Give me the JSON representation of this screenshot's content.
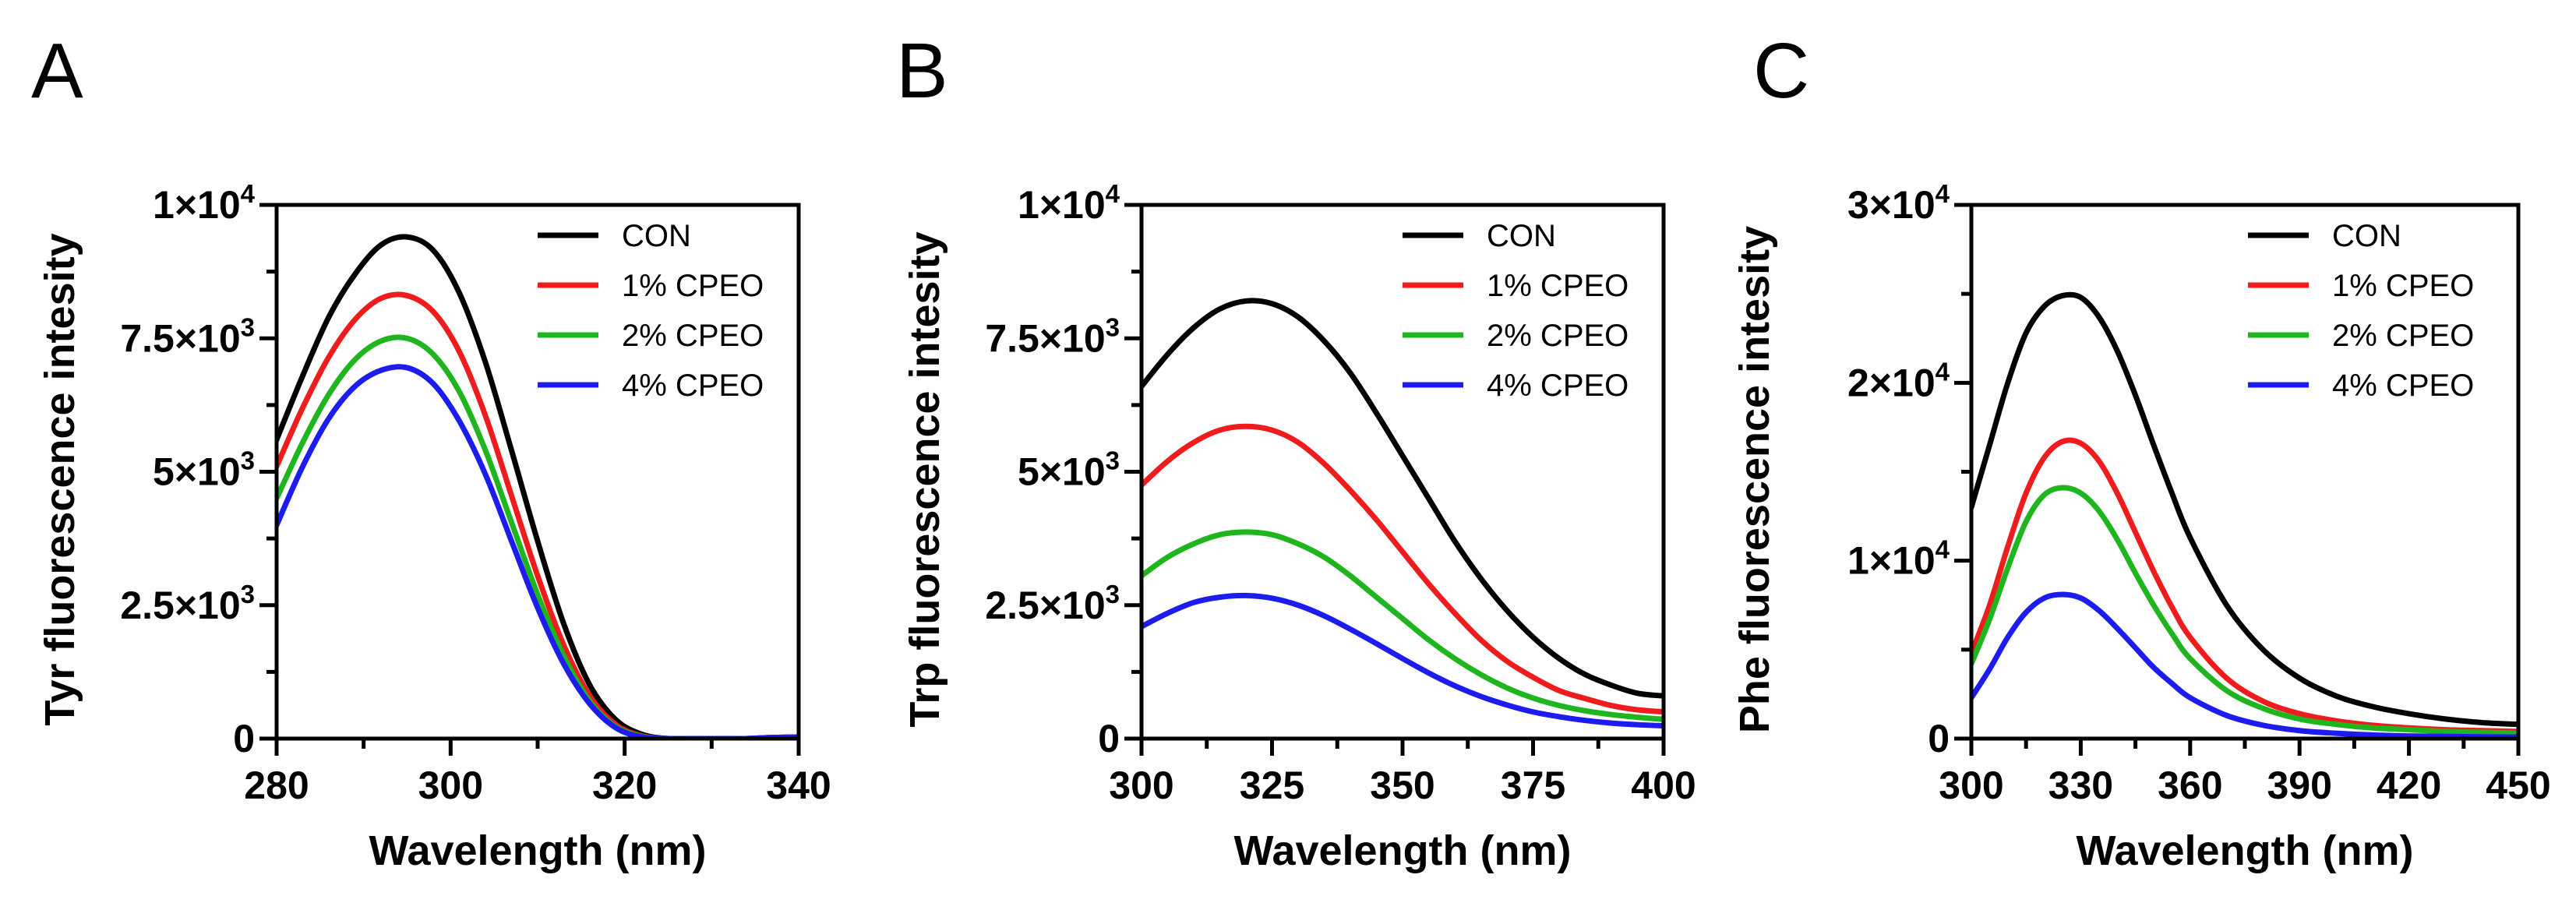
{
  "figure": {
    "panels": [
      "A",
      "B",
      "C"
    ]
  },
  "colors": {
    "CON": "#000000",
    "1% CPEO": "#ee1c1c",
    "2% CPEO": "#1fb51f",
    "4% CPEO": "#1c1cee"
  },
  "chart_data": [
    {
      "type": "line",
      "panel": "A",
      "xlabel": "Wavelength (nm)",
      "ylabel": "Tyr fluorescence intesity",
      "xlim": [
        280,
        340
      ],
      "ylim": [
        0,
        10000
      ],
      "xticks": [
        280,
        300,
        320,
        340
      ],
      "xtick_labels": [
        "280",
        "300",
        "320",
        "340"
      ],
      "yticks": [
        0,
        2500,
        5000,
        7500,
        10000
      ],
      "ytick_labels": [
        {
          "base": "0",
          "sup": ""
        },
        {
          "base": "2.5×10",
          "sup": "3"
        },
        {
          "base": "5×10",
          "sup": "3"
        },
        {
          "base": "7.5×10",
          "sup": "3"
        },
        {
          "base": "1×10",
          "sup": "4"
        }
      ],
      "legend": [
        "CON",
        "1% CPEO",
        "2% CPEO",
        "4% CPEO"
      ],
      "legend_position": "top-right",
      "series": [
        {
          "name": "CON",
          "x": [
            280,
            283,
            286,
            289,
            292,
            295,
            298,
            301,
            304,
            307,
            310,
            313,
            316,
            319,
            322,
            325,
            328,
            331,
            334,
            337,
            340
          ],
          "values": [
            5600,
            6800,
            7900,
            8700,
            9250,
            9400,
            9150,
            8350,
            7050,
            5400,
            3700,
            2150,
            1000,
            350,
            80,
            0,
            0,
            0,
            0,
            20,
            30
          ]
        },
        {
          "name": "1% CPEO",
          "x": [
            280,
            283,
            286,
            289,
            292,
            295,
            298,
            301,
            304,
            307,
            310,
            313,
            316,
            319,
            322,
            325,
            328,
            331,
            334,
            337,
            340
          ],
          "values": [
            5100,
            6200,
            7150,
            7850,
            8250,
            8300,
            8000,
            7250,
            6050,
            4550,
            3050,
            1750,
            800,
            260,
            50,
            0,
            0,
            0,
            0,
            20,
            30
          ]
        },
        {
          "name": "2% CPEO",
          "x": [
            280,
            283,
            286,
            289,
            292,
            295,
            298,
            301,
            304,
            307,
            310,
            313,
            316,
            319,
            322,
            325,
            328,
            331,
            334,
            337,
            340
          ],
          "values": [
            4500,
            5550,
            6450,
            7100,
            7450,
            7500,
            7200,
            6500,
            5400,
            4050,
            2700,
            1550,
            700,
            220,
            40,
            0,
            0,
            0,
            0,
            20,
            30
          ]
        },
        {
          "name": "4% CPEO",
          "x": [
            280,
            283,
            286,
            289,
            292,
            295,
            298,
            301,
            304,
            307,
            310,
            313,
            316,
            319,
            322,
            325,
            328,
            331,
            334,
            337,
            340
          ],
          "values": [
            4000,
            5100,
            6000,
            6600,
            6900,
            6950,
            6650,
            5950,
            4950,
            3700,
            2450,
            1400,
            650,
            200,
            30,
            0,
            0,
            0,
            0,
            20,
            30
          ]
        }
      ]
    },
    {
      "type": "line",
      "panel": "B",
      "xlabel": "Wavelength (nm)",
      "ylabel": "Trp fluorescence intesity",
      "xlim": [
        300,
        400
      ],
      "ylim": [
        0,
        10000
      ],
      "xticks": [
        300,
        325,
        350,
        375,
        400
      ],
      "xtick_labels": [
        "300",
        "325",
        "350",
        "375",
        "400"
      ],
      "yticks": [
        0,
        2500,
        5000,
        7500,
        10000
      ],
      "ytick_labels": [
        {
          "base": "0",
          "sup": ""
        },
        {
          "base": "2.5×10",
          "sup": "3"
        },
        {
          "base": "5×10",
          "sup": "3"
        },
        {
          "base": "7.5×10",
          "sup": "3"
        },
        {
          "base": "1×10",
          "sup": "4"
        }
      ],
      "legend": [
        "CON",
        "1% CPEO",
        "2% CPEO",
        "4% CPEO"
      ],
      "legend_position": "top-right",
      "series": [
        {
          "name": "CON",
          "x": [
            300,
            305,
            310,
            315,
            320,
            325,
            330,
            335,
            340,
            345,
            350,
            355,
            360,
            365,
            370,
            375,
            380,
            385,
            390,
            395,
            400
          ],
          "values": [
            6600,
            7200,
            7700,
            8050,
            8200,
            8150,
            7900,
            7450,
            6850,
            6100,
            5300,
            4500,
            3700,
            3000,
            2400,
            1900,
            1500,
            1200,
            1000,
            850,
            800
          ]
        },
        {
          "name": "1% CPEO",
          "x": [
            300,
            305,
            310,
            315,
            320,
            325,
            330,
            335,
            340,
            345,
            350,
            355,
            360,
            365,
            370,
            375,
            380,
            385,
            390,
            395,
            400
          ],
          "values": [
            4750,
            5200,
            5550,
            5780,
            5850,
            5780,
            5550,
            5150,
            4650,
            4100,
            3500,
            2900,
            2350,
            1850,
            1450,
            1150,
            900,
            750,
            620,
            540,
            500
          ]
        },
        {
          "name": "2% CPEO",
          "x": [
            300,
            305,
            310,
            315,
            320,
            325,
            330,
            335,
            340,
            345,
            350,
            355,
            360,
            365,
            370,
            375,
            380,
            385,
            390,
            395,
            400
          ],
          "values": [
            3050,
            3400,
            3650,
            3820,
            3870,
            3820,
            3650,
            3400,
            3050,
            2650,
            2250,
            1850,
            1500,
            1200,
            950,
            760,
            620,
            520,
            450,
            400,
            360
          ]
        },
        {
          "name": "4% CPEO",
          "x": [
            300,
            305,
            310,
            315,
            320,
            325,
            330,
            335,
            340,
            345,
            350,
            355,
            360,
            365,
            370,
            375,
            380,
            385,
            390,
            395,
            400
          ],
          "values": [
            2100,
            2350,
            2550,
            2650,
            2680,
            2630,
            2500,
            2300,
            2050,
            1780,
            1500,
            1230,
            990,
            790,
            630,
            500,
            410,
            340,
            290,
            260,
            240
          ]
        }
      ]
    },
    {
      "type": "line",
      "panel": "C",
      "xlabel": "Wavelength (nm)",
      "ylabel": "Phe fluorescence intesity",
      "xlim": [
        300,
        450
      ],
      "ylim": [
        0,
        30000
      ],
      "xticks": [
        300,
        330,
        360,
        390,
        420,
        450
      ],
      "xtick_labels": [
        "300",
        "330",
        "360",
        "390",
        "420",
        "450"
      ],
      "yticks": [
        0,
        10000,
        20000,
        30000
      ],
      "ytick_labels": [
        {
          "base": "0",
          "sup": ""
        },
        {
          "base": "1×10",
          "sup": "4"
        },
        {
          "base": "2×10",
          "sup": "4"
        },
        {
          "base": "3×10",
          "sup": "4"
        }
      ],
      "legend": [
        "CON",
        "1% CPEO",
        "2% CPEO",
        "4% CPEO"
      ],
      "legend_position": "top-right",
      "series": [
        {
          "name": "CON",
          "x": [
            300,
            305,
            310,
            315,
            320,
            325,
            330,
            335,
            340,
            345,
            350,
            355,
            360,
            370,
            380,
            390,
            400,
            410,
            420,
            430,
            440,
            450
          ],
          "values": [
            13000,
            16500,
            20000,
            22800,
            24300,
            24900,
            24800,
            23700,
            21800,
            19300,
            16500,
            13800,
            11300,
            7500,
            5000,
            3400,
            2400,
            1800,
            1400,
            1100,
            900,
            800
          ]
        },
        {
          "name": "1% CPEO",
          "x": [
            300,
            305,
            310,
            315,
            320,
            325,
            330,
            335,
            340,
            345,
            350,
            355,
            360,
            370,
            380,
            390,
            400,
            410,
            420,
            430,
            440,
            450
          ],
          "values": [
            4800,
            7500,
            10800,
            13800,
            15800,
            16700,
            16600,
            15600,
            13800,
            11600,
            9400,
            7400,
            5700,
            3400,
            2100,
            1400,
            1000,
            750,
            600,
            500,
            450,
            400
          ]
        },
        {
          "name": "2% CPEO",
          "x": [
            300,
            305,
            310,
            315,
            320,
            325,
            330,
            335,
            340,
            345,
            350,
            355,
            360,
            370,
            380,
            390,
            400,
            410,
            420,
            430,
            440,
            450
          ],
          "values": [
            4200,
            6700,
            9600,
            12200,
            13700,
            14100,
            13800,
            12800,
            11200,
            9300,
            7500,
            5900,
            4500,
            2700,
            1700,
            1100,
            800,
            600,
            500,
            400,
            350,
            300
          ]
        },
        {
          "name": "4% CPEO",
          "x": [
            300,
            305,
            310,
            315,
            320,
            325,
            330,
            335,
            340,
            345,
            350,
            355,
            360,
            370,
            380,
            390,
            400,
            410,
            420,
            430,
            440,
            450
          ],
          "values": [
            2300,
            3900,
            5700,
            7100,
            7900,
            8100,
            7900,
            7200,
            6200,
            5100,
            4000,
            3100,
            2300,
            1300,
            750,
            450,
            300,
            200,
            150,
            120,
            100,
            80
          ]
        }
      ]
    }
  ]
}
